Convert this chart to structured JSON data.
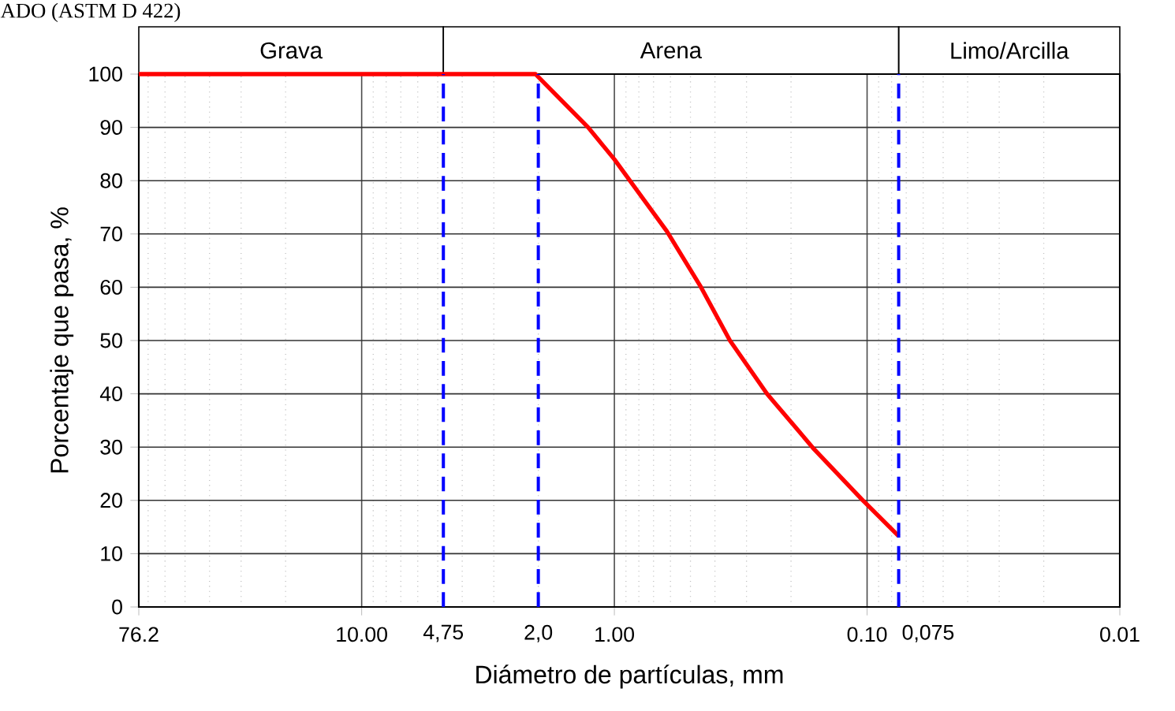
{
  "chart_data": {
    "type": "line",
    "title": "ADO (ASTM D 422)",
    "xlabel": "Diámetro de partículas, mm",
    "ylabel": "Porcentaje que pasa, %",
    "log": "x",
    "grid": true,
    "xlim": [
      76.2,
      0.01
    ],
    "xticks": [
      76.2,
      {
        "value": 10,
        "label": "10.00"
      },
      {
        "value": 1,
        "label": "1.00"
      },
      {
        "value": 0.1,
        "label": "0.10"
      },
      0.01
    ],
    "ylim": [
      0,
      100
    ],
    "yticks": [
      0,
      10,
      20,
      30,
      40,
      50,
      60,
      70,
      80,
      90,
      100
    ],
    "series": [
      {
        "color": "#ff0000",
        "line_style": "solid",
        "x": [
          76.2,
          4.75,
          2.05,
          1.27,
          1.0,
          0.62,
          0.454,
          0.349,
          0.249,
          0.162,
          0.105,
          0.075
        ],
        "values": [
          100,
          100,
          100,
          90,
          84,
          70.5,
          60,
          50,
          40,
          29.6,
          20.2,
          13.3
        ]
      }
    ],
    "ref_lines": [
      {
        "axis": "x",
        "value": 4.75,
        "label": "4,75",
        "color": "#0000ff",
        "line_style": "dashed"
      },
      {
        "axis": "x",
        "value": 2.0,
        "label": "2,0",
        "color": "#0000ff",
        "line_style": "dashed"
      },
      {
        "axis": "x",
        "value": 0.075,
        "label": "0,075",
        "color": "#0000ff",
        "line_style": "dashed"
      }
    ],
    "annotations": [
      "Grava",
      "Arena",
      "Limo/Arcilla"
    ]
  }
}
